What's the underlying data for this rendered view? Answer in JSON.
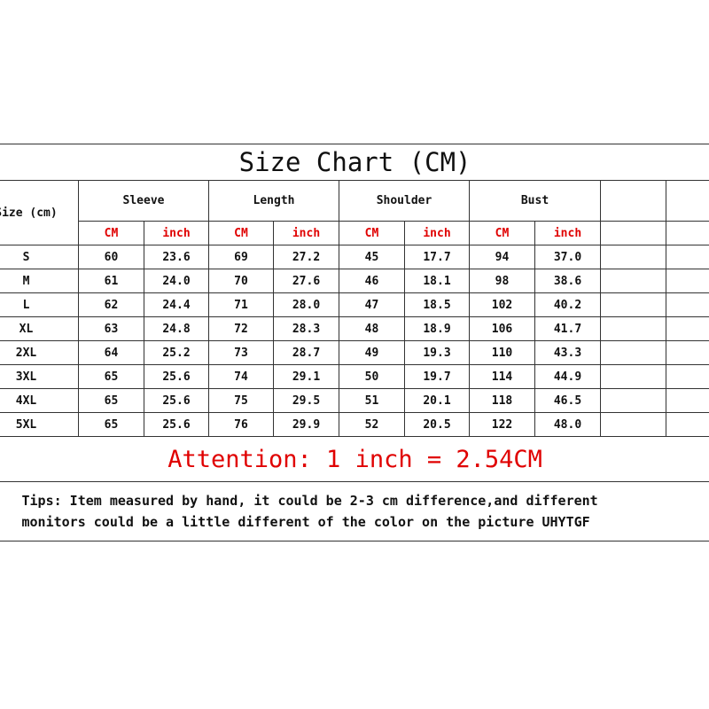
{
  "title": "Size Chart (CM)",
  "size_header": "Size (cm)",
  "groups": [
    "Sleeve",
    "Length",
    "Shoulder",
    "Bust"
  ],
  "unit_cm": "CM",
  "unit_inch": "inch",
  "rows": [
    [
      "S",
      "60",
      "23.6",
      "69",
      "27.2",
      "45",
      "17.7",
      "94",
      "37.0"
    ],
    [
      "M",
      "61",
      "24.0",
      "70",
      "27.6",
      "46",
      "18.1",
      "98",
      "38.6"
    ],
    [
      "L",
      "62",
      "24.4",
      "71",
      "28.0",
      "47",
      "18.5",
      "102",
      "40.2"
    ],
    [
      "XL",
      "63",
      "24.8",
      "72",
      "28.3",
      "48",
      "18.9",
      "106",
      "41.7"
    ],
    [
      "2XL",
      "64",
      "25.2",
      "73",
      "28.7",
      "49",
      "19.3",
      "110",
      "43.3"
    ],
    [
      "3XL",
      "65",
      "25.6",
      "74",
      "29.1",
      "50",
      "19.7",
      "114",
      "44.9"
    ],
    [
      "4XL",
      "65",
      "25.6",
      "75",
      "29.5",
      "51",
      "20.1",
      "118",
      "46.5"
    ],
    [
      "5XL",
      "65",
      "25.6",
      "76",
      "29.9",
      "52",
      "20.5",
      "122",
      "48.0"
    ]
  ],
  "attention": "Attention: 1 inch = 2.54CM",
  "tips_line1": "Tips: Item measured by hand, it could be 2-3 cm difference,and different",
  "tips_line2": "monitors could be a little different of the color on the picture UHYTGF",
  "colors": {
    "unit_header": "#e00000",
    "attention": "#e00000",
    "grid": "#333333"
  }
}
